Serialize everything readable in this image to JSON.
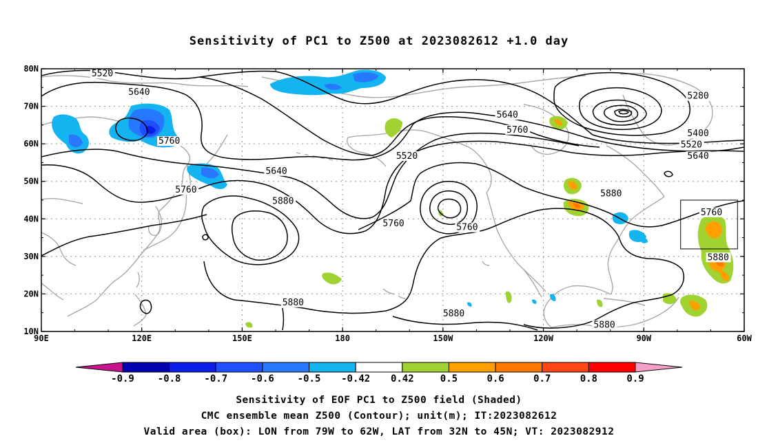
{
  "title": "Sensitivity of PC1 to Z500 at 2023082612 +1.0 day",
  "map": {
    "lon_min": 90,
    "lon_max": 300,
    "lat_min": 10,
    "lat_max": 80,
    "grid": true,
    "lat_ticks": [
      "80N",
      "70N",
      "60N",
      "50N",
      "40N",
      "30N",
      "20N",
      "10N"
    ],
    "lon_ticks": [
      "90E",
      "120E",
      "150E",
      "180",
      "150W",
      "120W",
      "90W",
      "60W"
    ],
    "lon_tick_values": [
      90,
      120,
      150,
      180,
      210,
      240,
      270,
      300
    ],
    "lat_tick_values": [
      80,
      70,
      60,
      50,
      40,
      30,
      20,
      10
    ],
    "valid_box": {
      "lon_w": 281,
      "lon_e": 298,
      "lat_s": 32,
      "lat_n": 45
    }
  },
  "contour_labels": [
    {
      "text": "5520",
      "lon": 105,
      "lat": 78
    },
    {
      "text": "5640",
      "lon": 116,
      "lat": 73
    },
    {
      "text": "5760",
      "lon": 125,
      "lat": 60
    },
    {
      "text": "5640",
      "lon": 157,
      "lat": 52
    },
    {
      "text": "5760",
      "lon": 130,
      "lat": 47
    },
    {
      "text": "5880",
      "lon": 159,
      "lat": 44
    },
    {
      "text": "5760",
      "lon": 192,
      "lat": 38
    },
    {
      "text": "5520",
      "lon": 196,
      "lat": 56
    },
    {
      "text": "5640",
      "lon": 226,
      "lat": 67
    },
    {
      "text": "5760",
      "lon": 229,
      "lat": 63
    },
    {
      "text": "5760",
      "lon": 214,
      "lat": 37
    },
    {
      "text": "5880",
      "lon": 257,
      "lat": 46
    },
    {
      "text": "5880",
      "lon": 162,
      "lat": 17
    },
    {
      "text": "5880",
      "lon": 210,
      "lat": 14
    },
    {
      "text": "5880",
      "lon": 255,
      "lat": 11
    },
    {
      "text": "5280",
      "lon": 283,
      "lat": 72
    },
    {
      "text": "5400",
      "lon": 283,
      "lat": 62
    },
    {
      "text": "5520",
      "lon": 281,
      "lat": 59
    },
    {
      "text": "5640",
      "lon": 283,
      "lat": 56
    },
    {
      "text": "5760",
      "lon": 287,
      "lat": 41
    },
    {
      "text": "5880",
      "lon": 289,
      "lat": 29
    }
  ],
  "colorbar": {
    "labels": [
      "-0.9",
      "-0.8",
      "-0.7",
      "-0.6",
      "-0.5",
      "-0.42",
      "0.42",
      "0.5",
      "0.6",
      "0.7",
      "0.8",
      "0.9"
    ],
    "colors": [
      "#0000b0",
      "#0a1ee6",
      "#1e50ff",
      "#2878ff",
      "#14b4f0",
      "#ffffff",
      "#a0d232",
      "#ffa000",
      "#ff7800",
      "#ff4614",
      "#ff0000"
    ],
    "end_low": "#c8148c",
    "end_high": "#f5a0c8"
  },
  "captions": {
    "line1": "Sensitivity of EOF PC1 to Z500 field (Shaded)",
    "line2": "CMC ensemble mean Z500 (Contour); unit(m); IT:2023082612",
    "line3": "Valid area (box): LON from 79W to 62W, LAT from 32N to 45N; VT: 2023082912"
  }
}
